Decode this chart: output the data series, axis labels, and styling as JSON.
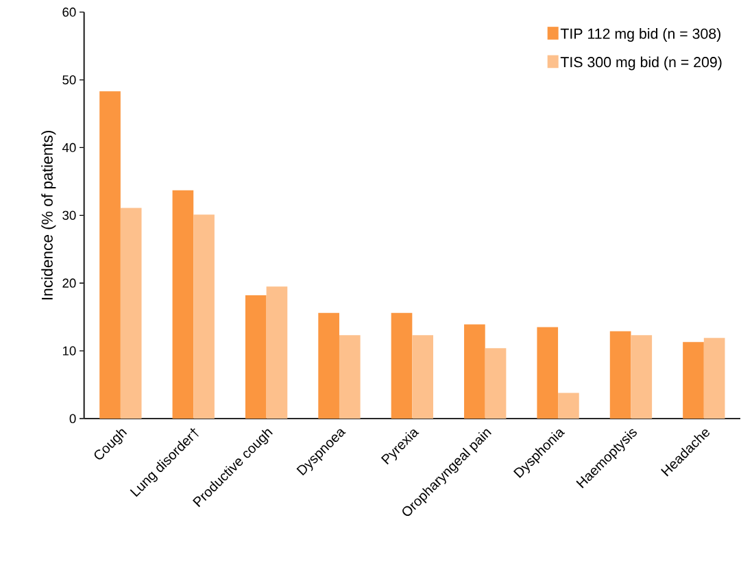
{
  "chart_data": {
    "type": "bar",
    "ylabel": "Incidence (% of patients)",
    "categories": [
      "Cough",
      "Lung disorder†",
      "Productive cough",
      "Dyspnoea",
      "Pyrexia",
      "Oropharyngeal pain",
      "Dysphonia",
      "Haemoptysis",
      "Headache"
    ],
    "series": [
      {
        "name": "TIP 112 mg bid (n = 308)",
        "color": "#fb9640",
        "values": [
          48.3,
          33.7,
          18.2,
          15.6,
          15.6,
          13.9,
          13.5,
          12.9,
          11.3
        ]
      },
      {
        "name": "TIS 300 mg bid (n = 209)",
        "color": "#fdc08c",
        "values": [
          31.1,
          30.1,
          19.5,
          12.3,
          12.3,
          10.4,
          3.8,
          12.3,
          11.9
        ]
      }
    ],
    "ylim": [
      0,
      60
    ],
    "yticks": [
      0,
      10,
      20,
      30,
      40,
      50,
      60
    ],
    "grid": false,
    "legend": "top right"
  }
}
